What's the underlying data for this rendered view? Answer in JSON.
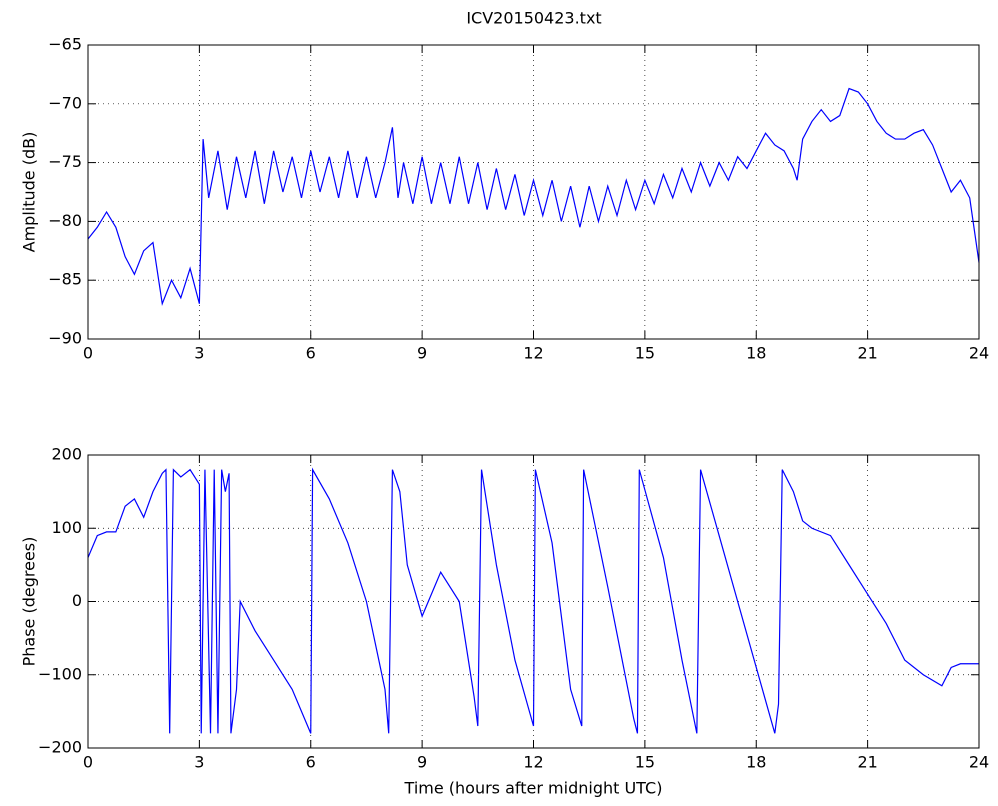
{
  "chart_data": [
    {
      "type": "line",
      "title": "ICV20150423.txt",
      "ylabel": "Amplitude (dB)",
      "color": "#0000ff",
      "grid": true,
      "xlim": [
        0,
        24
      ],
      "xticks": [
        0,
        3,
        6,
        9,
        12,
        15,
        18,
        21,
        24
      ],
      "ylim": [
        -90,
        -65
      ],
      "yticks": [
        {
          "value": -90,
          "label": "−90"
        },
        {
          "value": -85,
          "label": "−85"
        },
        {
          "value": -80,
          "label": "−80"
        },
        {
          "value": -75,
          "label": "−75"
        },
        {
          "value": -70,
          "label": "−70"
        },
        {
          "value": -65,
          "label": "−65"
        }
      ],
      "x": [
        0,
        0.25,
        0.5,
        0.75,
        1.0,
        1.25,
        1.5,
        1.75,
        2.0,
        2.25,
        2.5,
        2.75,
        3.0,
        3.1,
        3.25,
        3.5,
        3.75,
        4,
        4.25,
        4.5,
        4.75,
        5,
        5.25,
        5.5,
        5.75,
        6,
        6.25,
        6.5,
        6.75,
        7,
        7.25,
        7.5,
        7.75,
        8,
        8.2,
        8.35,
        8.5,
        8.75,
        9,
        9.25,
        9.5,
        9.75,
        10,
        10.25,
        10.5,
        10.75,
        11,
        11.25,
        11.5,
        11.75,
        12,
        12.25,
        12.5,
        12.75,
        13,
        13.25,
        13.5,
        13.75,
        14,
        14.25,
        14.5,
        14.75,
        15,
        15.25,
        15.5,
        15.75,
        16,
        16.25,
        16.5,
        16.75,
        17,
        17.25,
        17.5,
        17.75,
        18,
        18.25,
        18.5,
        18.75,
        19,
        19.1,
        19.25,
        19.5,
        19.75,
        20,
        20.25,
        20.5,
        20.75,
        21,
        21.25,
        21.5,
        21.75,
        22,
        22.25,
        22.5,
        22.75,
        23,
        23.25,
        23.5,
        23.75,
        24
      ],
      "values": [
        -81.5,
        -80.5,
        -79.2,
        -80.5,
        -83,
        -84.5,
        -82.5,
        -81.8,
        -87,
        -85,
        -86.5,
        -84,
        -87,
        -73,
        -78,
        -74,
        -79,
        -74.5,
        -78,
        -74,
        -78.5,
        -74,
        -77.5,
        -74.5,
        -78,
        -74,
        -77.5,
        -74.5,
        -78,
        -74,
        -78,
        -74.5,
        -78,
        -75,
        -72,
        -78,
        -75,
        -78.5,
        -74.5,
        -78.5,
        -75,
        -78.5,
        -74.5,
        -78.5,
        -75,
        -79,
        -75.5,
        -79,
        -76,
        -79.5,
        -76.5,
        -79.5,
        -76.5,
        -80,
        -77,
        -80.5,
        -77,
        -80,
        -77,
        -79.5,
        -76.5,
        -79,
        -76.5,
        -78.5,
        -76,
        -78,
        -75.5,
        -77.5,
        -75,
        -77,
        -75,
        -76.5,
        -74.5,
        -75.5,
        -74,
        -72.5,
        -73.5,
        -74,
        -75.5,
        -76.5,
        -73,
        -71.5,
        -70.5,
        -71.5,
        -71,
        -68.7,
        -69,
        -70,
        -71.5,
        -72.5,
        -73,
        -73,
        -72.5,
        -72.2,
        -73.5,
        -75.5,
        -77.5,
        -76.5,
        -78,
        -83.5
      ]
    },
    {
      "type": "line",
      "ylabel": "Phase (degrees)",
      "xlabel": "Time (hours after midnight UTC)",
      "color": "#0000ff",
      "grid": true,
      "xlim": [
        0,
        24
      ],
      "xticks": [
        0,
        3,
        6,
        9,
        12,
        15,
        18,
        21,
        24
      ],
      "ylim": [
        -200,
        200
      ],
      "yticks": [
        {
          "value": -200,
          "label": "−200"
        },
        {
          "value": -100,
          "label": "−100"
        },
        0,
        100,
        200
      ],
      "x": [
        0,
        0.25,
        0.5,
        0.75,
        1,
        1.25,
        1.5,
        1.75,
        2,
        2.1,
        2.2,
        2.3,
        2.5,
        2.75,
        3,
        3.05,
        3.15,
        3.3,
        3.4,
        3.5,
        3.6,
        3.7,
        3.8,
        3.85,
        4,
        4.1,
        4.5,
        5,
        5.5,
        6,
        6.05,
        6.5,
        7,
        7.5,
        8,
        8.1,
        8.2,
        8.4,
        8.6,
        9,
        9.5,
        10,
        10.4,
        10.5,
        10.6,
        11,
        11.5,
        12,
        12.05,
        12.5,
        13,
        13.3,
        13.35,
        14,
        14.7,
        14.8,
        14.85,
        15.5,
        16,
        16.4,
        16.5,
        17,
        18.5,
        18.6,
        18.7,
        19,
        19.25,
        19.5,
        20,
        20.5,
        21,
        21.5,
        22,
        22.5,
        23,
        23.25,
        23.5,
        24
      ],
      "values": [
        60,
        90,
        95,
        95,
        130,
        140,
        115,
        150,
        175,
        180,
        -180,
        180,
        170,
        180,
        160,
        -180,
        180,
        -180,
        180,
        -180,
        180,
        150,
        175,
        -180,
        -120,
        0,
        -40,
        -80,
        -120,
        -180,
        180,
        140,
        80,
        0,
        -120,
        -180,
        180,
        150,
        50,
        -20,
        40,
        0,
        -130,
        -170,
        180,
        50,
        -80,
        -170,
        180,
        80,
        -120,
        -170,
        180,
        20,
        -160,
        -180,
        180,
        60,
        -80,
        -180,
        180,
        90,
        -180,
        -140,
        180,
        150,
        110,
        100,
        90,
        50,
        10,
        -30,
        -80,
        -100,
        -115,
        -90,
        -85,
        -85
      ]
    }
  ]
}
